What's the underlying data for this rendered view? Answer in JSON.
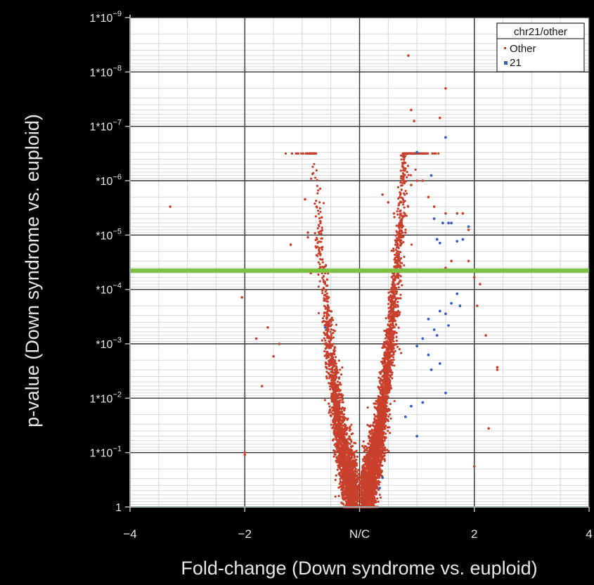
{
  "chart_data": {
    "type": "scatter",
    "title": "",
    "xlabel": "Fold-change (Down syndrome vs. euploid)",
    "ylabel": "p-value (Down syndrome vs. euploid)",
    "x_ticks": [
      {
        "value": -4,
        "label": "−4"
      },
      {
        "value": -2,
        "label": "−2"
      },
      {
        "value": 0,
        "label": "N/C"
      },
      {
        "value": 2,
        "label": "2"
      },
      {
        "value": 4,
        "label": "4"
      }
    ],
    "y_ticks": [
      {
        "value": 1e-09,
        "mant": "1*10",
        "exp": "−9"
      },
      {
        "value": 1e-08,
        "mant": "1*10",
        "exp": "−8"
      },
      {
        "value": 1e-07,
        "mant": "1*10",
        "exp": "−7"
      },
      {
        "value": 1e-06,
        "mant": "*10",
        "exp": "−6"
      },
      {
        "value": 1e-05,
        "mant": "*10",
        "exp": "−5"
      },
      {
        "value": 0.0001,
        "mant": "*10",
        "exp": "−4"
      },
      {
        "value": 0.001,
        "mant": "*10",
        "exp": "−3"
      },
      {
        "value": 0.01,
        "mant": "1*10",
        "exp": "−2"
      },
      {
        "value": 0.1,
        "mant": "1*10",
        "exp": "−1"
      },
      {
        "value": 1,
        "mant": "1",
        "exp": ""
      }
    ],
    "xlim": [
      -4,
      4
    ],
    "ylim": [
      1,
      1e-09
    ],
    "y_scale": "log (reversed)",
    "grid": true,
    "threshold_line": {
      "p_value": 4.5e-05,
      "color": "#7cc242"
    },
    "legend": {
      "title": "chr21/other",
      "position": "top-right",
      "entries": [
        "Other",
        "21"
      ]
    },
    "series": [
      {
        "name": "Other",
        "color": "#c8402c",
        "points": [
          [
            -3.3,
            3e-06
          ],
          [
            -2.05,
            0.00014
          ],
          [
            -2.0,
            0.11
          ],
          [
            -1.2,
            1.5e-05
          ],
          [
            -0.95,
            2.2e-06
          ],
          [
            -0.9,
            1.1e-05
          ],
          [
            -0.85,
            5e-05
          ],
          [
            -0.9,
            9e-06
          ],
          [
            -0.75,
            3e-06
          ],
          [
            -0.6,
            5e-05
          ],
          [
            -1.6,
            0.0005
          ],
          [
            -1.4,
            0.001
          ],
          [
            -1.8,
            0.0008
          ],
          [
            -1.5,
            0.0017
          ],
          [
            -1.7,
            0.006
          ],
          [
            -2.0,
            0.1
          ],
          [
            0.4,
            1.8e-06
          ],
          [
            0.5,
            2.5e-06
          ],
          [
            0.6,
            4e-06
          ],
          [
            0.7,
            6e-06
          ],
          [
            0.8,
            9e-06
          ],
          [
            0.9,
            1.2e-06
          ],
          [
            1.0,
            1e-06
          ],
          [
            1.1,
            1e-06
          ],
          [
            0.9,
            5e-08
          ],
          [
            0.95,
            8e-08
          ],
          [
            0.8,
            6e-07
          ],
          [
            1.5,
            2e-08
          ],
          [
            1.4,
            7e-08
          ],
          [
            0.85,
            5e-09
          ],
          [
            1.2,
            2e-06
          ],
          [
            1.3,
            3e-06
          ],
          [
            1.5,
            4e-06
          ],
          [
            1.6,
            6e-06
          ],
          [
            1.7,
            4e-06
          ],
          [
            1.8,
            4e-06
          ],
          [
            1.9,
            8e-06
          ],
          [
            2.0,
            6e-05
          ],
          [
            2.05,
            0.0002
          ],
          [
            2.1,
            8e-05
          ],
          [
            2.2,
            0.0007
          ],
          [
            2.4,
            0.003
          ],
          [
            2.4,
            0.0027
          ],
          [
            2.25,
            0.036
          ],
          [
            2.0,
            0.18
          ],
          [
            1.6,
            3e-05
          ],
          [
            1.9,
            3e-05
          ],
          [
            1.5,
            4e-05
          ]
        ]
      },
      {
        "name": "21",
        "color": "#3b5bc4",
        "points": [
          [
            1.0,
            3e-07
          ],
          [
            1.25,
            8e-07
          ],
          [
            1.5,
            1.6e-07
          ],
          [
            1.6,
            6e-06
          ],
          [
            1.7,
            1.3e-05
          ],
          [
            1.8,
            1.2e-05
          ],
          [
            1.35,
            1.2e-05
          ],
          [
            1.4,
            1.4e-05
          ],
          [
            1.3,
            5e-06
          ],
          [
            1.45,
            6e-06
          ],
          [
            1.55,
            6e-06
          ],
          [
            1.9,
            7e-06
          ],
          [
            -0.6,
            0.0005
          ],
          [
            1.1,
            0.0008
          ],
          [
            1.2,
            0.00035
          ],
          [
            1.3,
            0.00055
          ],
          [
            1.4,
            0.00025
          ],
          [
            1.5,
            0.00028
          ],
          [
            1.55,
            0.00046
          ],
          [
            1.6,
            0.00018
          ],
          [
            1.7,
            0.00012
          ],
          [
            1.75,
            0.0002
          ],
          [
            1.0,
            0.0011
          ],
          [
            1.2,
            0.0016
          ],
          [
            1.35,
            0.0007
          ],
          [
            1.4,
            0.0023
          ],
          [
            1.25,
            0.003
          ],
          [
            1.5,
            0.008
          ],
          [
            1.1,
            0.012
          ],
          [
            1.0,
            0.05
          ],
          [
            0.4,
            0.29
          ],
          [
            0.35,
            0.45
          ],
          [
            0.8,
            0.022
          ],
          [
            0.9,
            0.014
          ]
        ]
      }
    ]
  }
}
